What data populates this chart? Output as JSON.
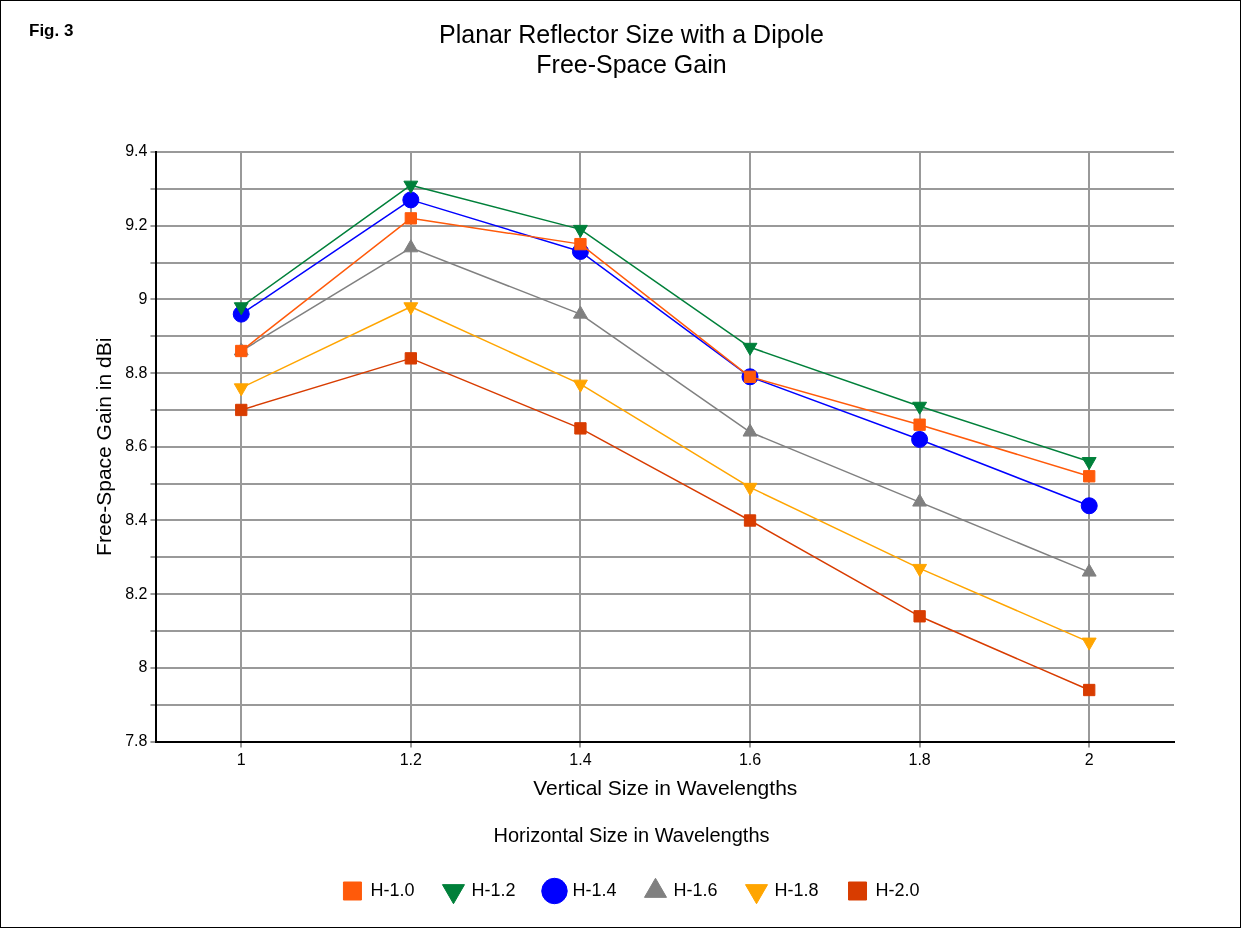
{
  "chart_data": {
    "type": "line",
    "title": "Planar Reflector Size with a Dipole\nFree-Space Gain",
    "xlabel": "Vertical Size in Wavelengths",
    "ylabel": "Free-Space Gain in dBi",
    "legend_title": "Horizontal Size in Wavelengths",
    "annotations": [
      "Fig. 3"
    ],
    "x": [
      1,
      1.2,
      1.4,
      1.6,
      1.8,
      2
    ],
    "series": [
      {
        "name": "H-1.0",
        "color": "#ff5a0a",
        "marker": "square",
        "values": [
          8.86,
          9.22,
          9.15,
          8.79,
          8.66,
          8.52
        ]
      },
      {
        "name": "H-1.2",
        "color": "#00803a",
        "marker": "triangle-down",
        "values": [
          8.98,
          9.31,
          9.19,
          8.87,
          8.71,
          8.56
        ]
      },
      {
        "name": "H-1.4",
        "color": "#0000ff",
        "marker": "circle",
        "values": [
          8.96,
          9.27,
          9.13,
          8.79,
          8.62,
          8.44
        ]
      },
      {
        "name": "H-1.6",
        "color": "#808080",
        "marker": "triangle",
        "values": [
          8.86,
          9.14,
          8.96,
          8.64,
          8.45,
          8.26
        ]
      },
      {
        "name": "H-1.8",
        "color": "#ffa500",
        "marker": "triangle-down",
        "values": [
          8.76,
          8.98,
          8.77,
          8.49,
          8.27,
          8.07
        ]
      },
      {
        "name": "H-2.0",
        "color": "#d83c00",
        "marker": "square",
        "values": [
          8.7,
          8.84,
          8.65,
          8.4,
          8.14,
          7.94
        ]
      }
    ],
    "xlim": [
      0.9,
      2.1
    ],
    "xticks": [
      1,
      1.2,
      1.4,
      1.6,
      1.8,
      2
    ],
    "ylim": [
      7.8,
      9.4
    ],
    "yticks": [
      7.8,
      {
        "value": 7.9,
        "label": null
      },
      8,
      {
        "value": 8.1,
        "label": null
      },
      8.2,
      {
        "value": 8.3,
        "label": null
      },
      8.4,
      {
        "value": 8.5,
        "label": null
      },
      8.6,
      {
        "value": 8.7,
        "label": null
      },
      8.8,
      {
        "value": 8.9,
        "label": null
      },
      9,
      {
        "value": 9.1,
        "label": null
      },
      9.2,
      {
        "value": 9.3,
        "label": null
      },
      9.4
    ],
    "grid": true,
    "legend": "bottom",
    "line_style": "solid"
  }
}
